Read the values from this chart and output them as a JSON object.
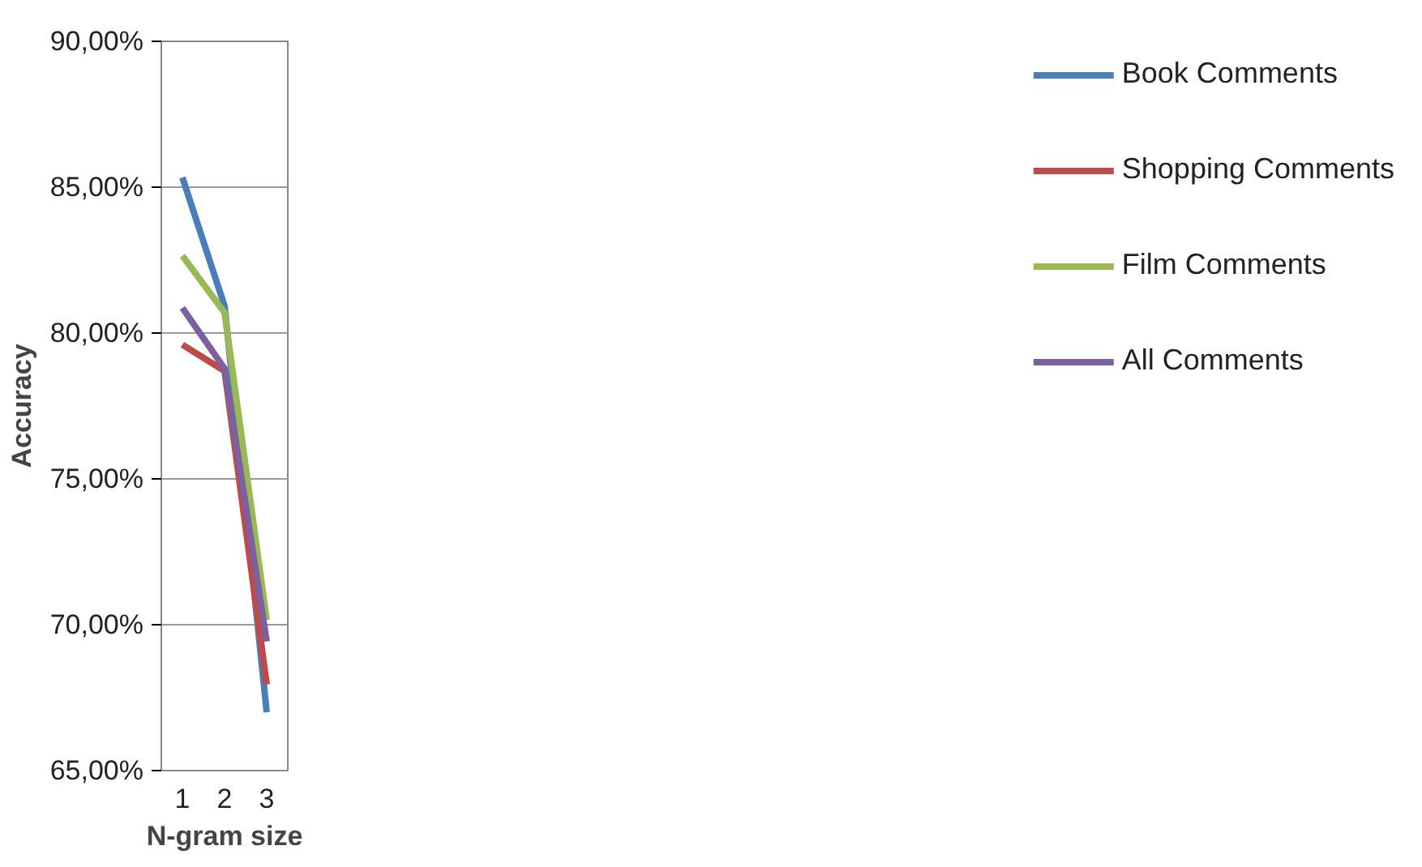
{
  "chart_data": {
    "type": "line",
    "xlabel": "N-gram size",
    "ylabel": "Accuracy",
    "categories": [
      "1",
      "2",
      "3"
    ],
    "series": [
      {
        "name": "Book Comments",
        "color": "#4a7ebb",
        "values": [
          85.33,
          80.93,
          67.0
        ]
      },
      {
        "name": "Shopping Comments",
        "color": "#be4b48",
        "values": [
          79.6,
          78.7,
          67.95
        ]
      },
      {
        "name": "Film Comments",
        "color": "#98b954",
        "values": [
          82.65,
          80.7,
          70.16
        ]
      },
      {
        "name": "All Comments",
        "color": "#7d60a0",
        "values": [
          80.86,
          78.78,
          69.43
        ]
      }
    ],
    "ylim": [
      65,
      90
    ],
    "yticks": [
      {
        "value": 65,
        "label": "65,00%"
      },
      {
        "value": 70,
        "label": "70,00%"
      },
      {
        "value": 75,
        "label": "75,00%"
      },
      {
        "value": 80,
        "label": "80,00%"
      },
      {
        "value": 85,
        "label": "85,00%"
      },
      {
        "value": 90,
        "label": "90,00%"
      }
    ],
    "grid": "y",
    "legend": "right",
    "marker": "none",
    "line_style": "solid"
  }
}
